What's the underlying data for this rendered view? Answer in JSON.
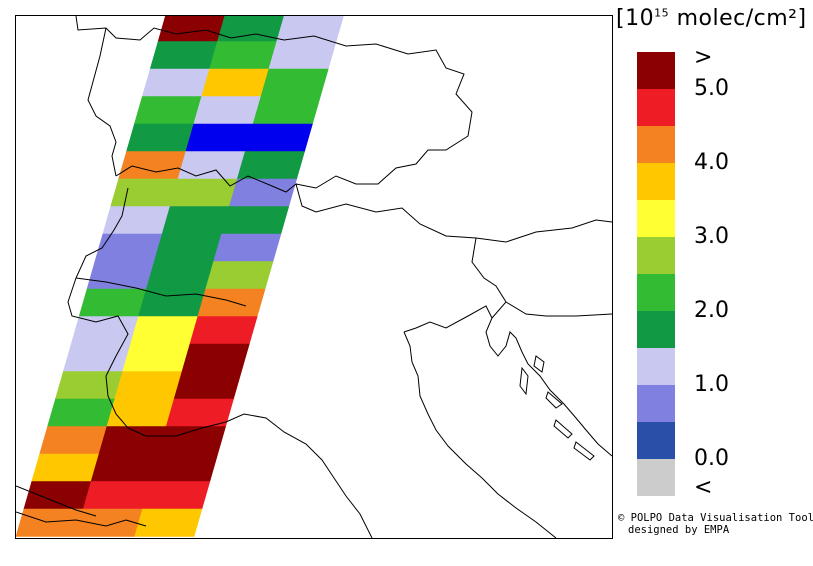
{
  "legend": {
    "title_prefix": "[10",
    "title_exponent": "15",
    "title_suffix": " molec/cm²]",
    "colors": [
      "#8b0000",
      "#ee1c24",
      "#f58220",
      "#ffc700",
      "#ffff33",
      "#9acd32",
      "#33bb33",
      "#119944",
      "#c8c8f0",
      "#8080e0",
      "#2a4fa8",
      "#cccccc"
    ],
    "labels": [
      ">",
      "5.0",
      "4.0",
      "3.0",
      "2.0",
      "1.0",
      "0.0",
      "<"
    ]
  },
  "credit": {
    "line1": "© POLPO Data Visualisation Tool",
    "line2": "designed by EMPA"
  },
  "swath": {
    "rows": [
      [
        "#8b0000",
        "#119944",
        "#c8c8f0"
      ],
      [
        "#119944",
        "#33bb33",
        "#c8c8f0"
      ],
      [
        "#c8c8f0",
        "#ffc700",
        "#33bb33"
      ],
      [
        "#33bb33",
        "#c8c8f0",
        "#33bb33"
      ],
      [
        "#119944",
        "#0000ee",
        "#0000ee"
      ],
      [
        "#f58220",
        "#c8c8f0",
        "#119944"
      ],
      [
        "#9acd32",
        "#9acd32",
        "#8080e0"
      ],
      [
        "#c8c8f0",
        "#119944",
        "#119944"
      ],
      [
        "#8080e0",
        "#119944",
        "#8080e0"
      ],
      [
        "#8080e0",
        "#119944",
        "#9acd32"
      ],
      [
        "#33bb33",
        "#119944",
        "#f58220"
      ],
      [
        "#c8c8f0",
        "#ffff33",
        "#ee1c24"
      ],
      [
        "#c8c8f0",
        "#ffff33",
        "#8b0000"
      ],
      [
        "#9acd32",
        "#ffc700",
        "#8b0000"
      ],
      [
        "#33bb33",
        "#ffc700",
        "#ee1c24"
      ],
      [
        "#f58220",
        "#8b0000",
        "#8b0000"
      ],
      [
        "#ffc700",
        "#8b0000",
        "#8b0000"
      ],
      [
        "#8b0000",
        "#ee1c24",
        "#ee1c24"
      ],
      [
        "#f58220",
        "#f58220",
        "#ffc700"
      ]
    ]
  }
}
